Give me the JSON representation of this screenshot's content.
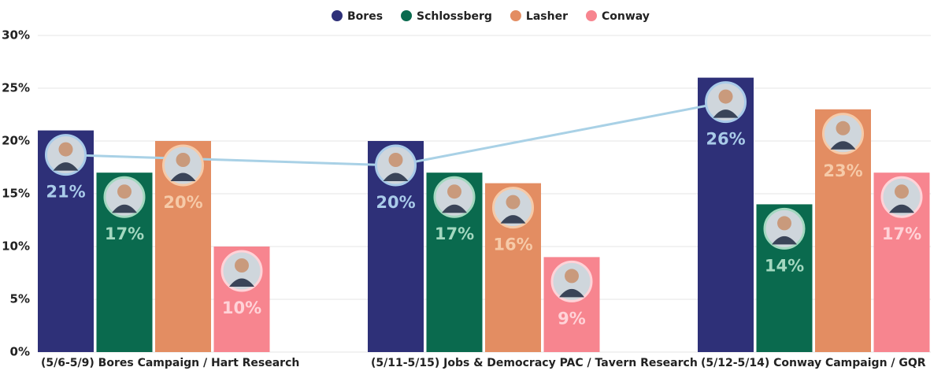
{
  "chart_data": {
    "type": "bar",
    "categories": [
      "(5/6-5/9) Bores Campaign / Hart Research",
      "(5/11-5/15) Jobs & Democracy PAC / Tavern Research",
      "(5/12-5/14) Conway Campaign / GQR"
    ],
    "series": [
      {
        "name": "Bores",
        "color": "#2e3078",
        "label_color": "#a9cbe9",
        "values": [
          21,
          20,
          26
        ],
        "value_labels": [
          "21%",
          "20%",
          "26%"
        ]
      },
      {
        "name": "Schlossberg",
        "color": "#0a6a4e",
        "label_color": "#a4d8c0",
        "values": [
          17,
          17,
          14
        ],
        "value_labels": [
          "17%",
          "17%",
          "14%"
        ]
      },
      {
        "name": "Lasher",
        "color": "#e38d62",
        "label_color": "#f6caa8",
        "values": [
          20,
          16,
          23
        ],
        "value_labels": [
          "20%",
          "16%",
          "23%"
        ]
      },
      {
        "name": "Conway",
        "color": "#f7858f",
        "label_color": "#ffd3d8",
        "values": [
          10,
          9,
          17
        ],
        "value_labels": [
          "10%",
          "9%",
          "17%"
        ]
      }
    ],
    "ylim": [
      0,
      30
    ],
    "yticks": [
      {
        "value": 0,
        "label": "0%"
      },
      {
        "value": 5,
        "label": "5%"
      },
      {
        "value": 10,
        "label": "10%"
      },
      {
        "value": 15,
        "label": "15%"
      },
      {
        "value": 20,
        "label": "20%"
      },
      {
        "value": 25,
        "label": "25%"
      },
      {
        "value": 30,
        "label": "30%"
      }
    ],
    "grid": true,
    "legend": "top",
    "trend_color": "#a9d1e6"
  }
}
